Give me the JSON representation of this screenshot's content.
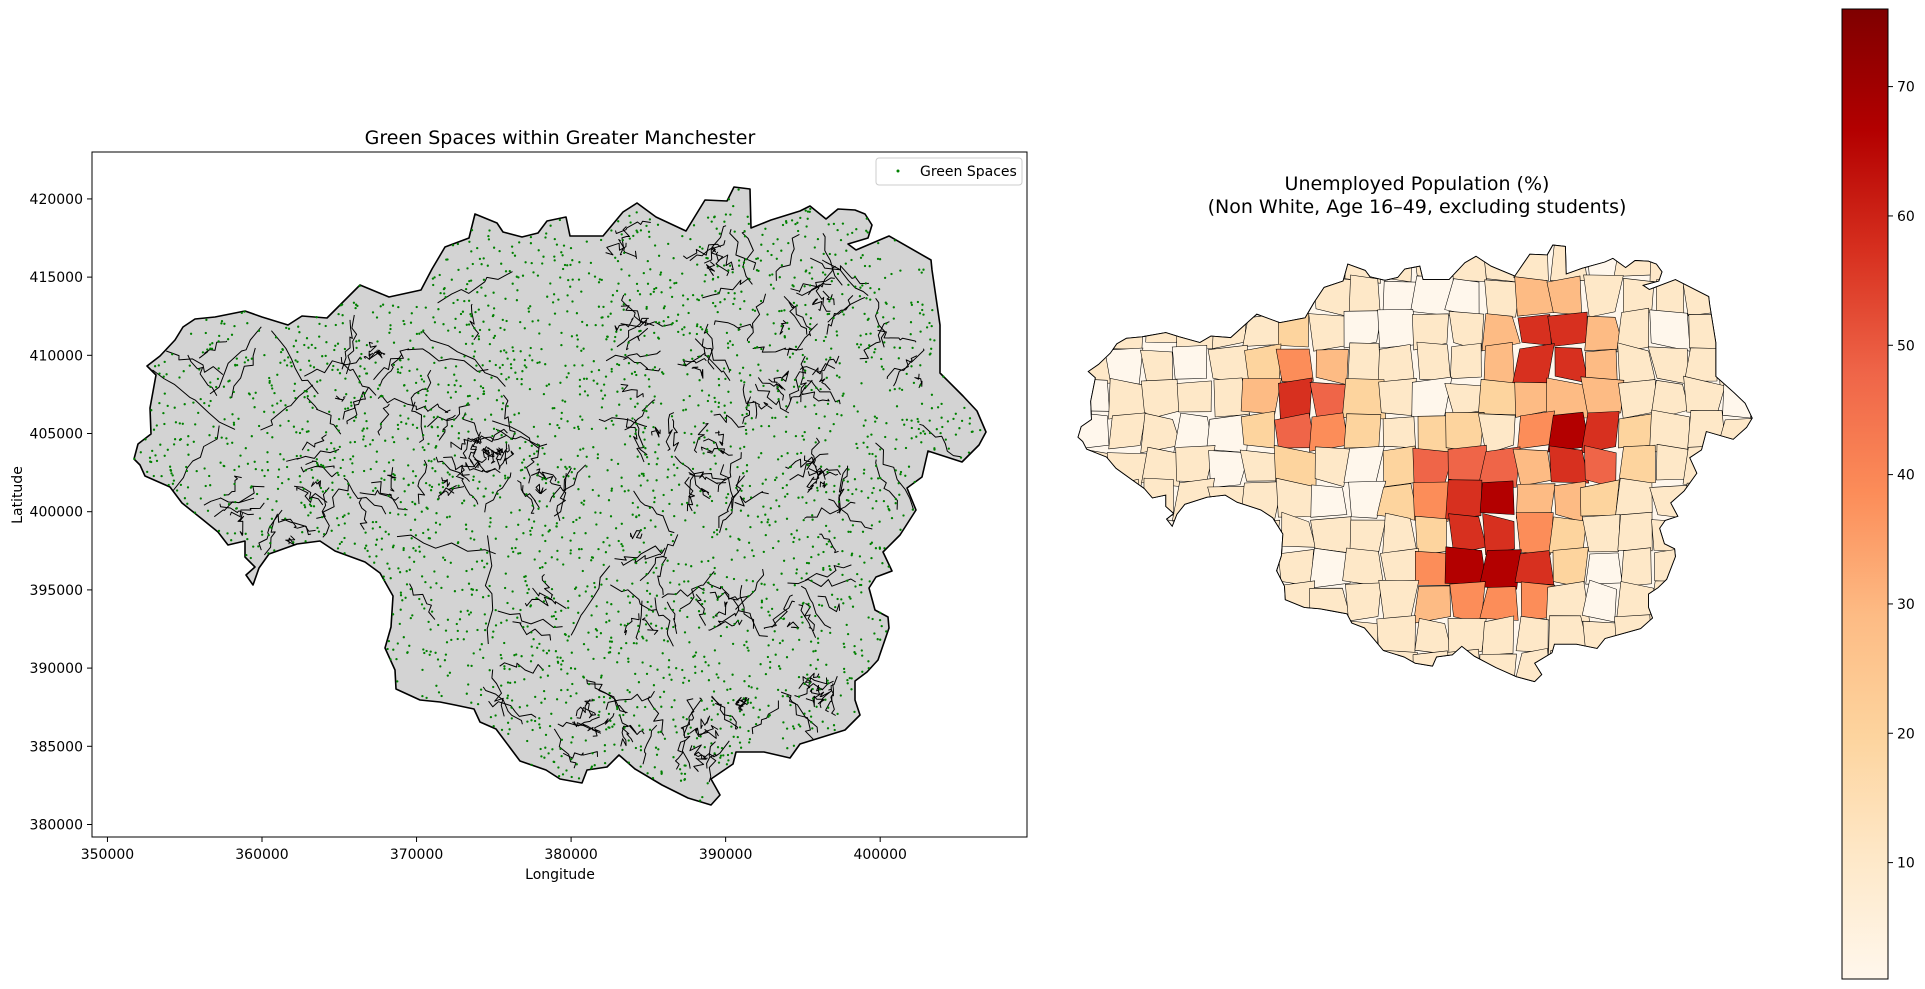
{
  "left_map": {
    "title": "Green Spaces within Greater Manchester",
    "xlabel": "Longitude",
    "ylabel": "Latitude",
    "xlim": [
      349000,
      409500
    ],
    "ylim": [
      379200,
      423000
    ],
    "x_ticks": [
      350000,
      360000,
      370000,
      380000,
      390000,
      400000
    ],
    "y_ticks": [
      380000,
      385000,
      390000,
      395000,
      400000,
      405000,
      410000,
      415000,
      420000
    ],
    "x_tick_labels": [
      "350000",
      "360000",
      "370000",
      "380000",
      "390000",
      "400000"
    ],
    "y_tick_labels": [
      "380000",
      "385000",
      "390000",
      "395000",
      "400000",
      "405000",
      "410000",
      "415000",
      "420000"
    ],
    "legend_label": "Green Spaces",
    "legend_placement": "top-right",
    "region_fill": "#d3d3d3",
    "boundary_color": "#000000",
    "point_color": "#008000"
  },
  "right_map": {
    "title_line1": "Unemployed Population (%)",
    "title_line2": "(Non White, Age 16–49, excluding students)",
    "colormap": "OrRd",
    "colorbar_range": [
      1,
      76
    ],
    "colorbar_ticks": [
      10,
      20,
      30,
      40,
      50,
      60,
      70
    ],
    "colorbar_tick_labels": [
      "10",
      "20",
      "30",
      "40",
      "50",
      "60",
      "70"
    ],
    "colors": [
      "#fff7ec",
      "#fee8c8",
      "#fdd49e",
      "#fdbb84",
      "#fc8d59",
      "#ef6548",
      "#d7301f",
      "#b30000",
      "#7f0000"
    ]
  }
}
